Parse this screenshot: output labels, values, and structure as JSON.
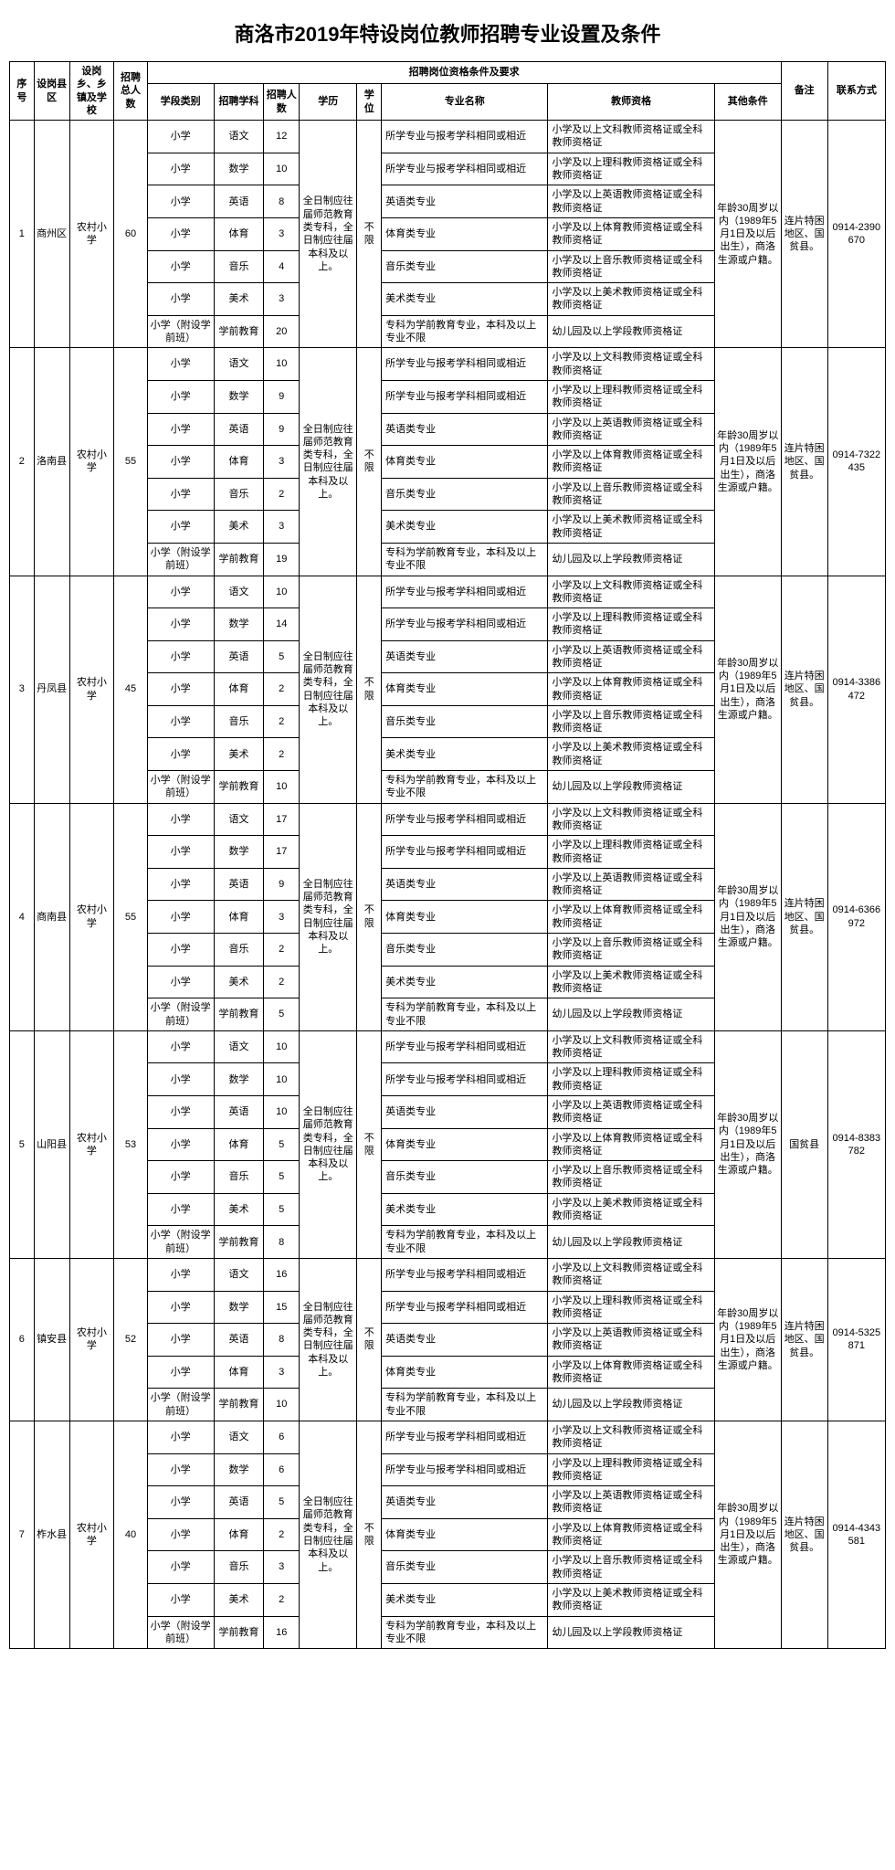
{
  "title": "商洛市2019年特设岗位教师招聘专业设置及条件",
  "headers": {
    "seq": "序号",
    "county": "设岗县区",
    "school": "设岗乡、乡镇及学校",
    "total": "招聘总人数",
    "requirementsGroup": "招聘岗位资格条件及要求",
    "stage": "学段类别",
    "subject": "招聘学科",
    "count": "招聘人数",
    "education": "学历",
    "degree": "学位",
    "major": "专业名称",
    "cert": "教师资格",
    "other": "其他条件",
    "remark": "备注",
    "contact": "联系方式"
  },
  "shared": {
    "education": "全日制应往届师范教育类专科，全日制应往届本科及以上。",
    "degree": "不限",
    "otherCondition": "年龄30周岁以内（1989年5月1日及以后出生），商洛生源或户籍。",
    "remarkA": "连片特困地区、国贫县。",
    "remarkB": "国贫县",
    "majorMatch": "所学专业与报考学科相同或相近",
    "majorEnglish": "英语类专业",
    "majorPE": "体育类专业",
    "majorMusic": "音乐类专业",
    "majorArt": "美术类专业",
    "majorPreschool": "专科为学前教育专业，本科及以上专业不限",
    "certChinese": "小学及以上文科教师资格证或全科教师资格证",
    "certMath": "小学及以上理科教师资格证或全科教师资格证",
    "certEnglish": "小学及以上英语教师资格证或全科教师资格证",
    "certPE": "小学及以上体育教师资格证或全科教师资格证",
    "certMusic": "小学及以上音乐教师资格证或全科教师资格证",
    "certArt": "小学及以上美术教师资格证或全科教师资格证",
    "certPreschool": "幼儿园及以上学段教师资格证",
    "stagePrimary": "小学",
    "stagePreschool": "小学（附设学前班）",
    "schoolName": "农村小学",
    "subjChinese": "语文",
    "subjMath": "数学",
    "subjEnglish": "英语",
    "subjPE": "体育",
    "subjMusic": "音乐",
    "subjArt": "美术",
    "subjPreschool": "学前教育"
  },
  "districts": [
    {
      "seq": "1",
      "name": "商州区",
      "total": "60",
      "contact": "0914-2390670",
      "remarkKey": "remarkA",
      "rows": [
        {
          "stage": "stagePrimary",
          "subj": "subjChinese",
          "count": "12",
          "major": "majorMatch",
          "cert": "certChinese"
        },
        {
          "stage": "stagePrimary",
          "subj": "subjMath",
          "count": "10",
          "major": "majorMatch",
          "cert": "certMath"
        },
        {
          "stage": "stagePrimary",
          "subj": "subjEnglish",
          "count": "8",
          "major": "majorEnglish",
          "cert": "certEnglish"
        },
        {
          "stage": "stagePrimary",
          "subj": "subjPE",
          "count": "3",
          "major": "majorPE",
          "cert": "certPE"
        },
        {
          "stage": "stagePrimary",
          "subj": "subjMusic",
          "count": "4",
          "major": "majorMusic",
          "cert": "certMusic"
        },
        {
          "stage": "stagePrimary",
          "subj": "subjArt",
          "count": "3",
          "major": "majorArt",
          "cert": "certArt"
        },
        {
          "stage": "stagePreschool",
          "subj": "subjPreschool",
          "count": "20",
          "major": "majorPreschool",
          "cert": "certPreschool"
        }
      ]
    },
    {
      "seq": "2",
      "name": "洛南县",
      "total": "55",
      "contact": "0914-7322435",
      "remarkKey": "remarkA",
      "rows": [
        {
          "stage": "stagePrimary",
          "subj": "subjChinese",
          "count": "10",
          "major": "majorMatch",
          "cert": "certChinese"
        },
        {
          "stage": "stagePrimary",
          "subj": "subjMath",
          "count": "9",
          "major": "majorMatch",
          "cert": "certMath"
        },
        {
          "stage": "stagePrimary",
          "subj": "subjEnglish",
          "count": "9",
          "major": "majorEnglish",
          "cert": "certEnglish"
        },
        {
          "stage": "stagePrimary",
          "subj": "subjPE",
          "count": "3",
          "major": "majorPE",
          "cert": "certPE"
        },
        {
          "stage": "stagePrimary",
          "subj": "subjMusic",
          "count": "2",
          "major": "majorMusic",
          "cert": "certMusic"
        },
        {
          "stage": "stagePrimary",
          "subj": "subjArt",
          "count": "3",
          "major": "majorArt",
          "cert": "certArt"
        },
        {
          "stage": "stagePreschool",
          "subj": "subjPreschool",
          "count": "19",
          "major": "majorPreschool",
          "cert": "certPreschool"
        }
      ]
    },
    {
      "seq": "3",
      "name": "丹凤县",
      "total": "45",
      "contact": "0914-3386472",
      "remarkKey": "remarkA",
      "rows": [
        {
          "stage": "stagePrimary",
          "subj": "subjChinese",
          "count": "10",
          "major": "majorMatch",
          "cert": "certChinese"
        },
        {
          "stage": "stagePrimary",
          "subj": "subjMath",
          "count": "14",
          "major": "majorMatch",
          "cert": "certMath"
        },
        {
          "stage": "stagePrimary",
          "subj": "subjEnglish",
          "count": "5",
          "major": "majorEnglish",
          "cert": "certEnglish"
        },
        {
          "stage": "stagePrimary",
          "subj": "subjPE",
          "count": "2",
          "major": "majorPE",
          "cert": "certPE"
        },
        {
          "stage": "stagePrimary",
          "subj": "subjMusic",
          "count": "2",
          "major": "majorMusic",
          "cert": "certMusic"
        },
        {
          "stage": "stagePrimary",
          "subj": "subjArt",
          "count": "2",
          "major": "majorArt",
          "cert": "certArt"
        },
        {
          "stage": "stagePreschool",
          "subj": "subjPreschool",
          "count": "10",
          "major": "majorPreschool",
          "cert": "certPreschool"
        }
      ]
    },
    {
      "seq": "4",
      "name": "商南县",
      "total": "55",
      "contact": "0914-6366972",
      "remarkKey": "remarkA",
      "rows": [
        {
          "stage": "stagePrimary",
          "subj": "subjChinese",
          "count": "17",
          "major": "majorMatch",
          "cert": "certChinese"
        },
        {
          "stage": "stagePrimary",
          "subj": "subjMath",
          "count": "17",
          "major": "majorMatch",
          "cert": "certMath"
        },
        {
          "stage": "stagePrimary",
          "subj": "subjEnglish",
          "count": "9",
          "major": "majorEnglish",
          "cert": "certEnglish"
        },
        {
          "stage": "stagePrimary",
          "subj": "subjPE",
          "count": "3",
          "major": "majorPE",
          "cert": "certPE"
        },
        {
          "stage": "stagePrimary",
          "subj": "subjMusic",
          "count": "2",
          "major": "majorMusic",
          "cert": "certMusic"
        },
        {
          "stage": "stagePrimary",
          "subj": "subjArt",
          "count": "2",
          "major": "majorArt",
          "cert": "certArt"
        },
        {
          "stage": "stagePreschool",
          "subj": "subjPreschool",
          "count": "5",
          "major": "majorPreschool",
          "cert": "certPreschool"
        }
      ]
    },
    {
      "seq": "5",
      "name": "山阳县",
      "total": "53",
      "contact": "0914-8383782",
      "remarkKey": "remarkB",
      "rows": [
        {
          "stage": "stagePrimary",
          "subj": "subjChinese",
          "count": "10",
          "major": "majorMatch",
          "cert": "certChinese"
        },
        {
          "stage": "stagePrimary",
          "subj": "subjMath",
          "count": "10",
          "major": "majorMatch",
          "cert": "certMath"
        },
        {
          "stage": "stagePrimary",
          "subj": "subjEnglish",
          "count": "10",
          "major": "majorEnglish",
          "cert": "certEnglish"
        },
        {
          "stage": "stagePrimary",
          "subj": "subjPE",
          "count": "5",
          "major": "majorPE",
          "cert": "certPE"
        },
        {
          "stage": "stagePrimary",
          "subj": "subjMusic",
          "count": "5",
          "major": "majorMusic",
          "cert": "certMusic"
        },
        {
          "stage": "stagePrimary",
          "subj": "subjArt",
          "count": "5",
          "major": "majorArt",
          "cert": "certArt"
        },
        {
          "stage": "stagePreschool",
          "subj": "subjPreschool",
          "count": "8",
          "major": "majorPreschool",
          "cert": "certPreschool"
        }
      ]
    },
    {
      "seq": "6",
      "name": "镇安县",
      "total": "52",
      "contact": "0914-5325871",
      "remarkKey": "remarkA",
      "rows": [
        {
          "stage": "stagePrimary",
          "subj": "subjChinese",
          "count": "16",
          "major": "majorMatch",
          "cert": "certChinese"
        },
        {
          "stage": "stagePrimary",
          "subj": "subjMath",
          "count": "15",
          "major": "majorMatch",
          "cert": "certMath"
        },
        {
          "stage": "stagePrimary",
          "subj": "subjEnglish",
          "count": "8",
          "major": "majorEnglish",
          "cert": "certEnglish"
        },
        {
          "stage": "stagePrimary",
          "subj": "subjPE",
          "count": "3",
          "major": "majorPE",
          "cert": "certPE"
        },
        {
          "stage": "stagePreschool",
          "subj": "subjPreschool",
          "count": "10",
          "major": "majorPreschool",
          "cert": "certPreschool"
        }
      ]
    },
    {
      "seq": "7",
      "name": "柞水县",
      "total": "40",
      "contact": "0914-4343581",
      "remarkKey": "remarkA",
      "rows": [
        {
          "stage": "stagePrimary",
          "subj": "subjChinese",
          "count": "6",
          "major": "majorMatch",
          "cert": "certChinese"
        },
        {
          "stage": "stagePrimary",
          "subj": "subjMath",
          "count": "6",
          "major": "majorMatch",
          "cert": "certMath"
        },
        {
          "stage": "stagePrimary",
          "subj": "subjEnglish",
          "count": "5",
          "major": "majorEnglish",
          "cert": "certEnglish"
        },
        {
          "stage": "stagePrimary",
          "subj": "subjPE",
          "count": "2",
          "major": "majorPE",
          "cert": "certPE"
        },
        {
          "stage": "stagePrimary",
          "subj": "subjMusic",
          "count": "3",
          "major": "majorMusic",
          "cert": "certMusic"
        },
        {
          "stage": "stagePrimary",
          "subj": "subjArt",
          "count": "2",
          "major": "majorArt",
          "cert": "certArt"
        },
        {
          "stage": "stagePreschool",
          "subj": "subjPreschool",
          "count": "16",
          "major": "majorPreschool",
          "cert": "certPreschool"
        }
      ]
    }
  ]
}
